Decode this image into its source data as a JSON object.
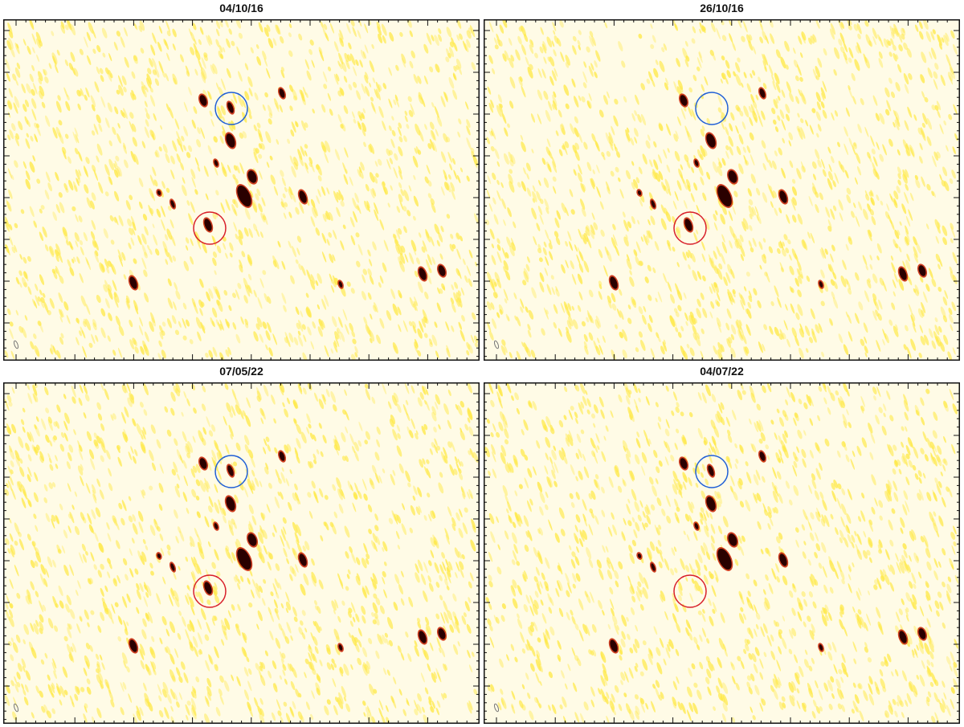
{
  "figure": {
    "panels": [
      {
        "title": "04/10/16",
        "blue_circle_source": "present",
        "red_circle_source": "present"
      },
      {
        "title": "26/10/16",
        "blue_circle_source": "absent",
        "red_circle_source": "present"
      },
      {
        "title": "07/05/22",
        "blue_circle_source": "present",
        "red_circle_source": "present"
      },
      {
        "title": "04/07/22",
        "blue_circle_source": "present",
        "red_circle_source": "absent"
      }
    ],
    "colors": {
      "background": "#fffbe6",
      "noise": "#ffe94a",
      "source_core": "#2a0000",
      "source_halo": "#c81e00",
      "circle_blue": "#1f5fd6",
      "circle_red": "#d81f2a",
      "frame": "#111111"
    }
  }
}
